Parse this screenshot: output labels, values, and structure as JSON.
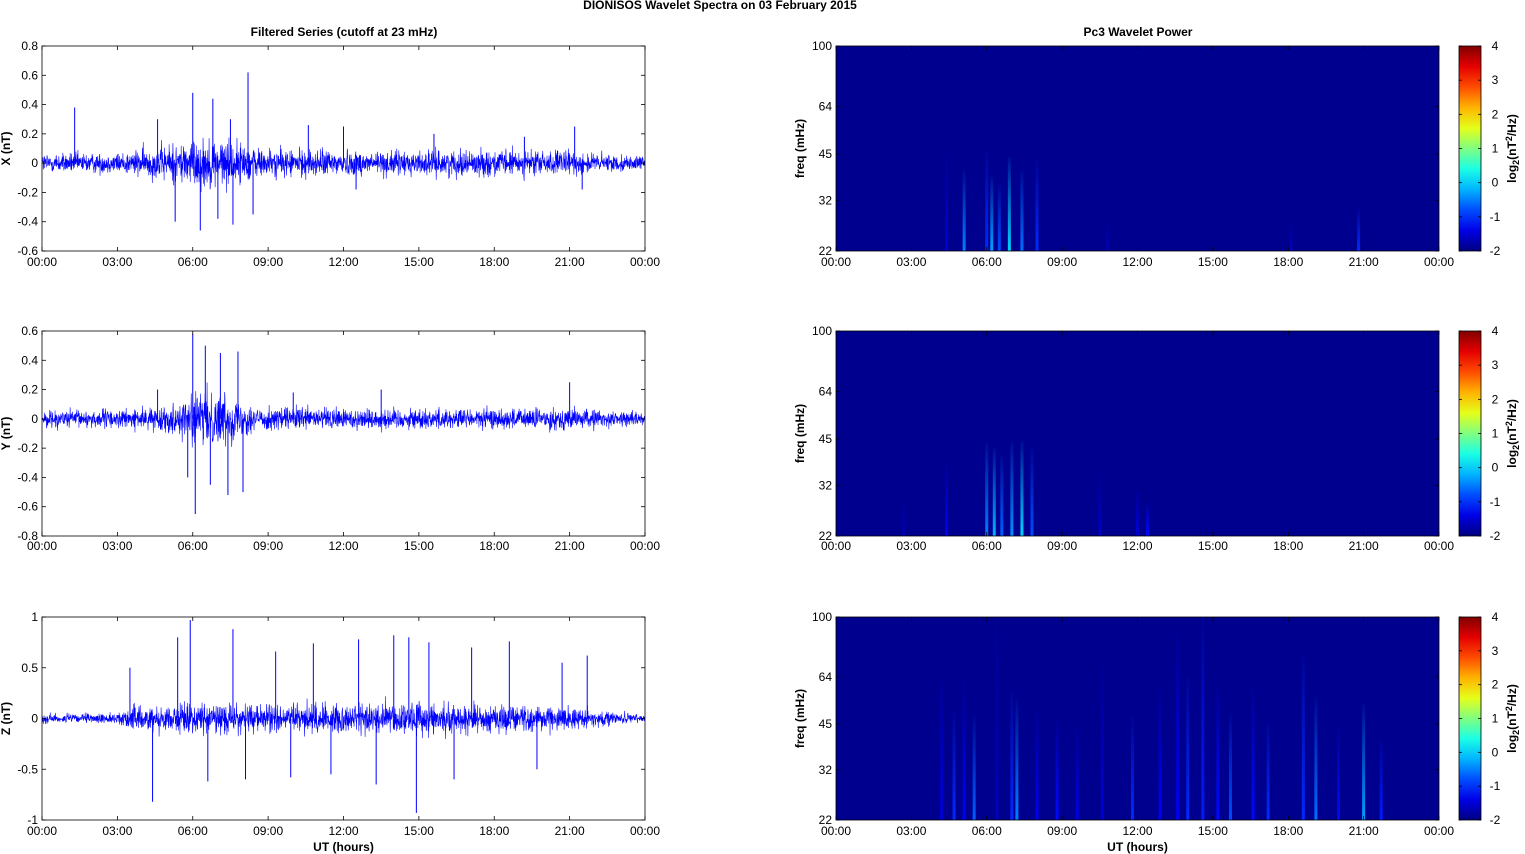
{
  "figure_title": "DIONISOS Wavelet Spectra on 03 February  2015",
  "left_title": "Filtered Series (cutoff at 23 mHz)",
  "right_title": "Pc3 Wavelet Power",
  "colors": {
    "trace": "#0000ff",
    "background": "#00008f"
  },
  "chart_data": [
    {
      "type": "line",
      "ylabel": "X (nT)",
      "xlabel": "",
      "xlim": [
        0,
        24
      ],
      "ylim": [
        -0.6,
        0.8
      ],
      "x_tick_labels": [
        "00:00",
        "03:00",
        "06:00",
        "09:00",
        "12:00",
        "15:00",
        "18:00",
        "21:00",
        "00:00"
      ],
      "y_ticks": [
        -0.6,
        -0.4,
        -0.2,
        0,
        0.2,
        0.4,
        0.6,
        0.8
      ],
      "y_tick_labels": [
        "-0.6",
        "-0.4",
        "-0.2",
        "0",
        "0.2",
        "0.4",
        "0.6",
        "0.8"
      ],
      "series": [
        {
          "color": "#0000ff",
          "baseline_amplitude": 0.06,
          "envelope": [
            [
              0,
              1.0
            ],
            [
              3,
              1.0
            ],
            [
              4.5,
              1.6
            ],
            [
              5.5,
              2.2
            ],
            [
              6.5,
              2.5
            ],
            [
              7.5,
              2.3
            ],
            [
              8.5,
              1.6
            ],
            [
              9,
              1.4
            ],
            [
              12,
              1.3
            ],
            [
              15,
              1.2
            ],
            [
              18,
              1.3
            ],
            [
              21,
              1.2
            ],
            [
              24,
              0.6
            ]
          ],
          "spikes": [
            [
              1.3,
              0.38
            ],
            [
              4.6,
              0.3
            ],
            [
              5.3,
              -0.4
            ],
            [
              6.0,
              0.48
            ],
            [
              6.3,
              -0.46
            ],
            [
              6.8,
              0.44
            ],
            [
              7.0,
              -0.38
            ],
            [
              7.5,
              0.3
            ],
            [
              7.6,
              -0.42
            ],
            [
              8.2,
              0.62
            ],
            [
              8.4,
              -0.35
            ],
            [
              10.6,
              0.26
            ],
            [
              12.0,
              0.25
            ],
            [
              12.5,
              -0.18
            ],
            [
              15.6,
              0.2
            ],
            [
              19.2,
              0.18
            ],
            [
              21.2,
              0.25
            ],
            [
              21.5,
              -0.18
            ]
          ]
        }
      ]
    },
    {
      "type": "line",
      "ylabel": "Y (nT)",
      "xlabel": "",
      "xlim": [
        0,
        24
      ],
      "ylim": [
        -0.8,
        0.6
      ],
      "x_tick_labels": [
        "00:00",
        "03:00",
        "06:00",
        "09:00",
        "12:00",
        "15:00",
        "18:00",
        "21:00",
        "00:00"
      ],
      "y_ticks": [
        -0.8,
        -0.6,
        -0.4,
        -0.2,
        0,
        0.2,
        0.4,
        0.6
      ],
      "y_tick_labels": [
        "-0.8",
        "-0.6",
        "-0.4",
        "-0.2",
        "0",
        "0.2",
        "0.4",
        "0.6"
      ],
      "series": [
        {
          "color": "#0000ff",
          "baseline_amplitude": 0.05,
          "envelope": [
            [
              0,
              1.0
            ],
            [
              4.5,
              1.2
            ],
            [
              5.5,
              2.0
            ],
            [
              6.0,
              3.0
            ],
            [
              7.0,
              3.2
            ],
            [
              8.0,
              2.2
            ],
            [
              8.5,
              1.4
            ],
            [
              12,
              1.3
            ],
            [
              18,
              1.2
            ],
            [
              21,
              1.3
            ],
            [
              24,
              0.7
            ]
          ],
          "spikes": [
            [
              4.6,
              0.2
            ],
            [
              5.8,
              -0.4
            ],
            [
              6.0,
              0.58
            ],
            [
              6.1,
              -0.65
            ],
            [
              6.5,
              0.5
            ],
            [
              6.7,
              -0.45
            ],
            [
              7.1,
              0.45
            ],
            [
              7.4,
              -0.52
            ],
            [
              7.8,
              0.46
            ],
            [
              8.0,
              -0.5
            ],
            [
              10.0,
              0.18
            ],
            [
              13.5,
              0.2
            ],
            [
              21.0,
              0.25
            ]
          ]
        }
      ]
    },
    {
      "type": "line",
      "ylabel": "Z (nT)",
      "xlabel": "UT (hours)",
      "xlim": [
        0,
        24
      ],
      "ylim": [
        -1,
        1
      ],
      "x_tick_labels": [
        "00:00",
        "03:00",
        "06:00",
        "09:00",
        "12:00",
        "15:00",
        "18:00",
        "21:00",
        "00:00"
      ],
      "y_ticks": [
        -1,
        -0.5,
        0,
        0.5,
        1
      ],
      "y_tick_labels": [
        "-1",
        "-0.5",
        "0",
        "0.5",
        "1"
      ],
      "series": [
        {
          "color": "#0000ff",
          "baseline_amplitude": 0.04,
          "envelope": [
            [
              0,
              1.0
            ],
            [
              3,
              1.0
            ],
            [
              3.3,
              2.5
            ],
            [
              6,
              3.2
            ],
            [
              9,
              3.0
            ],
            [
              12,
              3.3
            ],
            [
              15,
              3.5
            ],
            [
              18,
              3.0
            ],
            [
              21,
              2.5
            ],
            [
              22.5,
              1.4
            ],
            [
              24,
              0.8
            ]
          ],
          "spikes": [
            [
              3.5,
              0.5
            ],
            [
              4.4,
              -0.82
            ],
            [
              5.4,
              0.8
            ],
            [
              5.9,
              0.97
            ],
            [
              6.6,
              -0.62
            ],
            [
              7.6,
              0.88
            ],
            [
              8.1,
              -0.6
            ],
            [
              9.3,
              0.66
            ],
            [
              9.9,
              -0.58
            ],
            [
              10.8,
              0.74
            ],
            [
              11.5,
              -0.55
            ],
            [
              12.6,
              0.78
            ],
            [
              13.3,
              -0.65
            ],
            [
              14.0,
              0.82
            ],
            [
              14.6,
              0.8
            ],
            [
              14.9,
              -0.93
            ],
            [
              15.4,
              0.75
            ],
            [
              16.4,
              -0.6
            ],
            [
              17.1,
              0.7
            ],
            [
              18.6,
              0.76
            ],
            [
              19.7,
              -0.5
            ],
            [
              20.7,
              0.55
            ],
            [
              21.7,
              0.62
            ]
          ]
        }
      ]
    },
    {
      "type": "heatmap",
      "ylabel": "freq (mHz)",
      "xlabel": "",
      "xlim": [
        0,
        24
      ],
      "ylim": [
        22,
        100
      ],
      "y_scale": "log",
      "x_tick_labels": [
        "00:00",
        "03:00",
        "06:00",
        "09:00",
        "12:00",
        "15:00",
        "18:00",
        "21:00",
        "00:00"
      ],
      "y_ticks": [
        22,
        32,
        45,
        64,
        100
      ],
      "y_tick_labels": [
        "22",
        "32",
        "45",
        "64",
        "100"
      ],
      "colorbar": {
        "label_main": "log",
        "label_sub": "2",
        "label_mid": "(nT",
        "label_sup": "2",
        "label_end": "/Hz)",
        "ticks": [
          -2,
          -1,
          0,
          1,
          2,
          3,
          4
        ],
        "tick_labels": [
          "-2",
          "-1",
          "0",
          "1",
          "2",
          "3",
          "4"
        ]
      },
      "events": [
        [
          4.4,
          46,
          -1.5
        ],
        [
          5.1,
          40,
          -0.5
        ],
        [
          6.0,
          46,
          -1.0
        ],
        [
          6.2,
          38,
          -0.3
        ],
        [
          6.5,
          36,
          -0.8
        ],
        [
          6.9,
          44,
          0.0
        ],
        [
          7.4,
          40,
          -0.6
        ],
        [
          8.0,
          43,
          -1.0
        ],
        [
          10.8,
          28,
          -1.7
        ],
        [
          18.1,
          27,
          -1.6
        ],
        [
          20.8,
          30,
          -1.0
        ]
      ]
    },
    {
      "type": "heatmap",
      "ylabel": "freq (mHz)",
      "xlabel": "",
      "xlim": [
        0,
        24
      ],
      "ylim": [
        22,
        100
      ],
      "y_scale": "log",
      "x_tick_labels": [
        "00:00",
        "03:00",
        "06:00",
        "09:00",
        "12:00",
        "15:00",
        "18:00",
        "21:00",
        "00:00"
      ],
      "y_ticks": [
        22,
        32,
        45,
        64,
        100
      ],
      "y_tick_labels": [
        "22",
        "32",
        "45",
        "64",
        "100"
      ],
      "colorbar": {
        "label_main": "log",
        "label_sub": "2",
        "label_mid": "(nT",
        "label_sup": "2",
        "label_end": "/Hz)",
        "ticks": [
          -2,
          -1,
          0,
          1,
          2,
          3,
          4
        ],
        "tick_labels": [
          "-2",
          "-1",
          "0",
          "1",
          "2",
          "3",
          "4"
        ]
      },
      "events": [
        [
          2.7,
          29,
          -1.7
        ],
        [
          4.4,
          38,
          -1.3
        ],
        [
          6.0,
          44,
          -0.5
        ],
        [
          6.3,
          42,
          -0.2
        ],
        [
          6.6,
          40,
          -0.7
        ],
        [
          7.0,
          44,
          -0.4
        ],
        [
          7.4,
          44,
          0.0
        ],
        [
          7.8,
          42,
          -0.8
        ],
        [
          10.5,
          35,
          -1.6
        ],
        [
          12.0,
          31,
          -1.5
        ],
        [
          12.4,
          28,
          -1.2
        ]
      ]
    },
    {
      "type": "heatmap",
      "ylabel": "freq (mHz)",
      "xlabel": "UT (hours)",
      "xlim": [
        0,
        24
      ],
      "ylim": [
        22,
        100
      ],
      "y_scale": "log",
      "x_tick_labels": [
        "00:00",
        "03:00",
        "06:00",
        "09:00",
        "12:00",
        "15:00",
        "18:00",
        "21:00",
        "00:00"
      ],
      "y_ticks": [
        22,
        32,
        45,
        64,
        100
      ],
      "y_tick_labels": [
        "22",
        "32",
        "45",
        "64",
        "100"
      ],
      "colorbar": {
        "label_main": "log",
        "label_sub": "2",
        "label_mid": "(nT",
        "label_sup": "2",
        "label_end": "/Hz)",
        "ticks": [
          -2,
          -1,
          0,
          1,
          2,
          3,
          4
        ],
        "tick_labels": [
          "-2",
          "-1",
          "0",
          "1",
          "2",
          "3",
          "4"
        ]
      },
      "events": [
        [
          4.2,
          64,
          -1.5
        ],
        [
          4.7,
          50,
          -1.0
        ],
        [
          5.1,
          62,
          -1.3
        ],
        [
          5.5,
          48,
          -0.7
        ],
        [
          6.4,
          94,
          -1.6
        ],
        [
          7.0,
          58,
          -1.0
        ],
        [
          7.2,
          54,
          -0.5
        ],
        [
          8.0,
          50,
          -1.3
        ],
        [
          8.8,
          46,
          -1.2
        ],
        [
          9.6,
          44,
          -1.4
        ],
        [
          10.6,
          70,
          -1.5
        ],
        [
          11.8,
          48,
          -1.0
        ],
        [
          12.9,
          60,
          -1.3
        ],
        [
          13.6,
          88,
          -1.3
        ],
        [
          14.0,
          64,
          -1.0
        ],
        [
          14.6,
          100,
          -1.1
        ],
        [
          15.2,
          60,
          -1.2
        ],
        [
          15.7,
          48,
          -0.8
        ],
        [
          16.6,
          58,
          -1.2
        ],
        [
          17.2,
          46,
          -1.0
        ],
        [
          18.6,
          76,
          -1.0
        ],
        [
          19.1,
          55,
          -0.6
        ],
        [
          20.0,
          44,
          -1.2
        ],
        [
          21.0,
          52,
          -0.3
        ],
        [
          21.7,
          40,
          -1.1
        ]
      ]
    }
  ]
}
